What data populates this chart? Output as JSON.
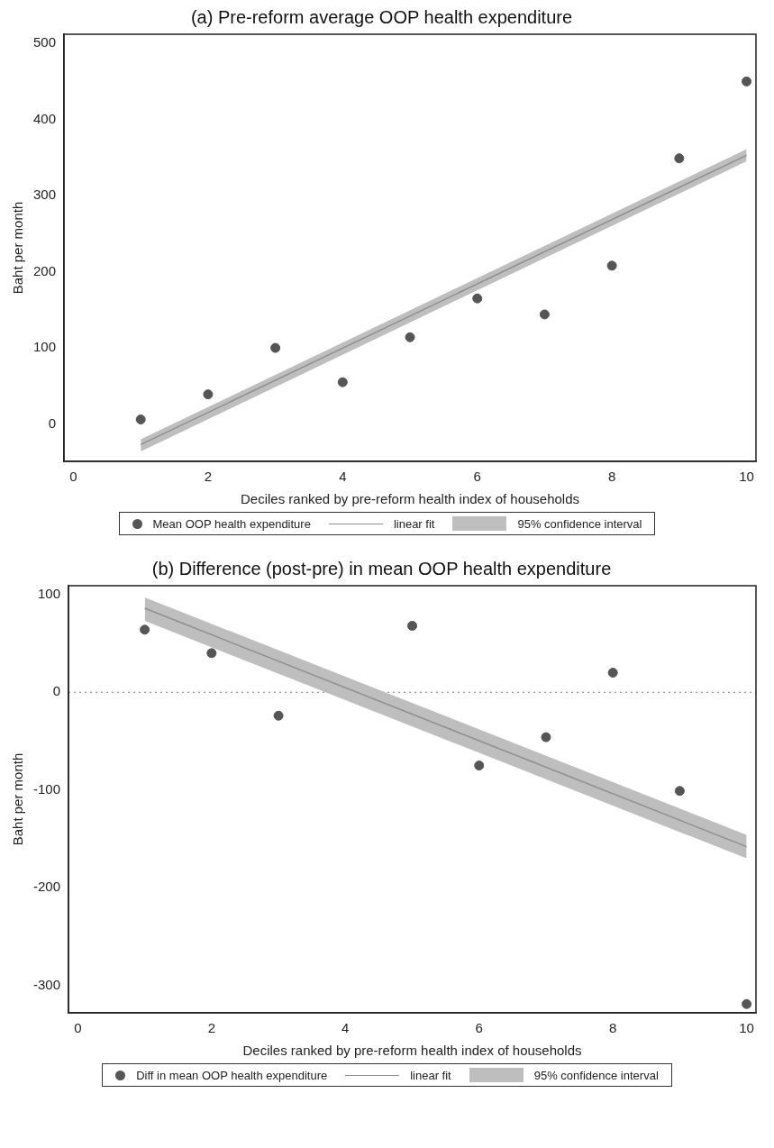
{
  "chart_data": [
    {
      "type": "scatter",
      "title": "(a) Pre-reform average OOP health expenditure",
      "xlabel": "Deciles ranked by pre-reform health index of households",
      "ylabel": "Baht per month",
      "xlim": [
        -0.14,
        10.14
      ],
      "xticks": [
        0,
        2,
        4,
        6,
        8,
        10
      ],
      "ylim": [
        -49,
        512
      ],
      "yticks": [
        0,
        100,
        200,
        300,
        400,
        500
      ],
      "grid": false,
      "legend": "bottom",
      "annotations": [
        "95% confidence interval"
      ],
      "series": [
        {
          "name": "Mean OOP health expenditure",
          "type": "scatter",
          "marker": "circle",
          "color": "#555555",
          "x": [
            1,
            2,
            3,
            4,
            5,
            6,
            7,
            8,
            9,
            10
          ],
          "values": [
            6,
            39,
            100,
            55,
            114,
            165,
            144,
            208,
            349,
            450
          ]
        },
        {
          "name": "linear fit",
          "type": "line",
          "marker": "none",
          "color": "#8f8f8f",
          "x": [
            1,
            10
          ],
          "values": [
            -27,
            353
          ],
          "lower": [
            -36,
            345
          ],
          "upper": [
            -20,
            361
          ]
        }
      ]
    },
    {
      "type": "scatter",
      "title": "(b) Difference (post-pre) in mean OOP health expenditure",
      "xlabel": "Deciles ranked by pre-reform health index of households",
      "ylabel": "Baht per month",
      "xlim": [
        -0.14,
        10.14
      ],
      "xticks": [
        0,
        2,
        4,
        6,
        8,
        10
      ],
      "ylim": [
        -328,
        109
      ],
      "yticks": [
        -300,
        -200,
        -100,
        0,
        100
      ],
      "grid": false,
      "legend": "bottom",
      "annotations": [
        "95% confidence interval"
      ],
      "ref_lines": [
        {
          "axis": "y",
          "value": 0,
          "color": "#777777",
          "line_style": "dotted"
        }
      ],
      "series": [
        {
          "name": "Diff in mean OOP health expenditure",
          "type": "scatter",
          "marker": "circle",
          "color": "#555555",
          "x": [
            1,
            2,
            3,
            4,
            5,
            6,
            7,
            8,
            9,
            10
          ],
          "values": [
            64,
            40,
            -24,
            null,
            68,
            -75,
            -46,
            20,
            -101,
            -319
          ]
        },
        {
          "name": "linear fit",
          "type": "line",
          "marker": "none",
          "color": "#8f8f8f",
          "x": [
            1,
            10
          ],
          "values": [
            86,
            -158
          ],
          "lower": [
            73,
            -170
          ],
          "upper": [
            97,
            -146
          ]
        }
      ]
    }
  ]
}
